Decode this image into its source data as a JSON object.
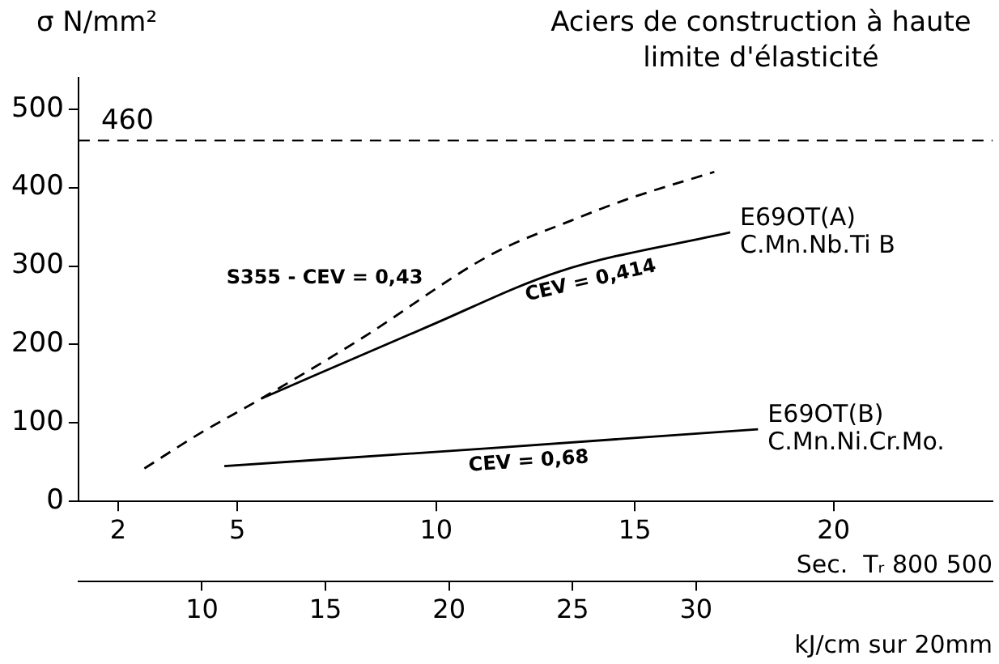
{
  "chart_data": {
    "type": "line",
    "title": "Aciers de construction à haute\nlimite d'élasticité",
    "ylabel": "σ N/mm²",
    "xlabel": "Sec.  Tᵣ 800 500",
    "x2label": "kJ/cm sur 20mm",
    "xlim": [
      1,
      24
    ],
    "xticks": [
      2,
      5,
      10,
      15,
      20
    ],
    "x2lim": [
      5,
      42
    ],
    "x2ticks": [
      10,
      15,
      20,
      25,
      30
    ],
    "ylim": [
      0,
      540
    ],
    "yticks": [
      0,
      100,
      200,
      300,
      400,
      500
    ],
    "grid": false,
    "legend": false,
    "marker": "none",
    "ref_lines": [
      {
        "axis": "y",
        "value": 460,
        "label": "460",
        "color": "#000000",
        "line_style": "dashed"
      }
    ],
    "series": [
      {
        "name": "S355 - CEV = 0,43",
        "color": "#000000",
        "line_style": "dashed",
        "x": [
          2.66,
          4.0,
          5.6,
          8.1,
          11.4,
          13.4,
          14.8,
          17.0
        ],
        "values": [
          42,
          85,
          131,
          207,
          315,
          358,
          385,
          420
        ]
      },
      {
        "name": "E69OT(A)   C.Mn.Nb.Ti B",
        "color": "#000000",
        "line_style": "solid",
        "x": [
          5.6,
          9.8,
          13.1,
          17.4
        ],
        "values": [
          131,
          223,
          293,
          343
        ]
      },
      {
        "name": "E69OT(B)  C.Mn.Ni.Cr.Mo.",
        "color": "#000000",
        "line_style": "solid",
        "x": [
          4.67,
          11.4,
          18.1
        ],
        "values": [
          45,
          68,
          92
        ]
      }
    ],
    "annotations": [
      {
        "text": "CEV = 0,414",
        "x": 13.8,
        "y": 301
      },
      {
        "text": "CEV = 0,68",
        "x": 12.3,
        "y": 71
      }
    ]
  }
}
